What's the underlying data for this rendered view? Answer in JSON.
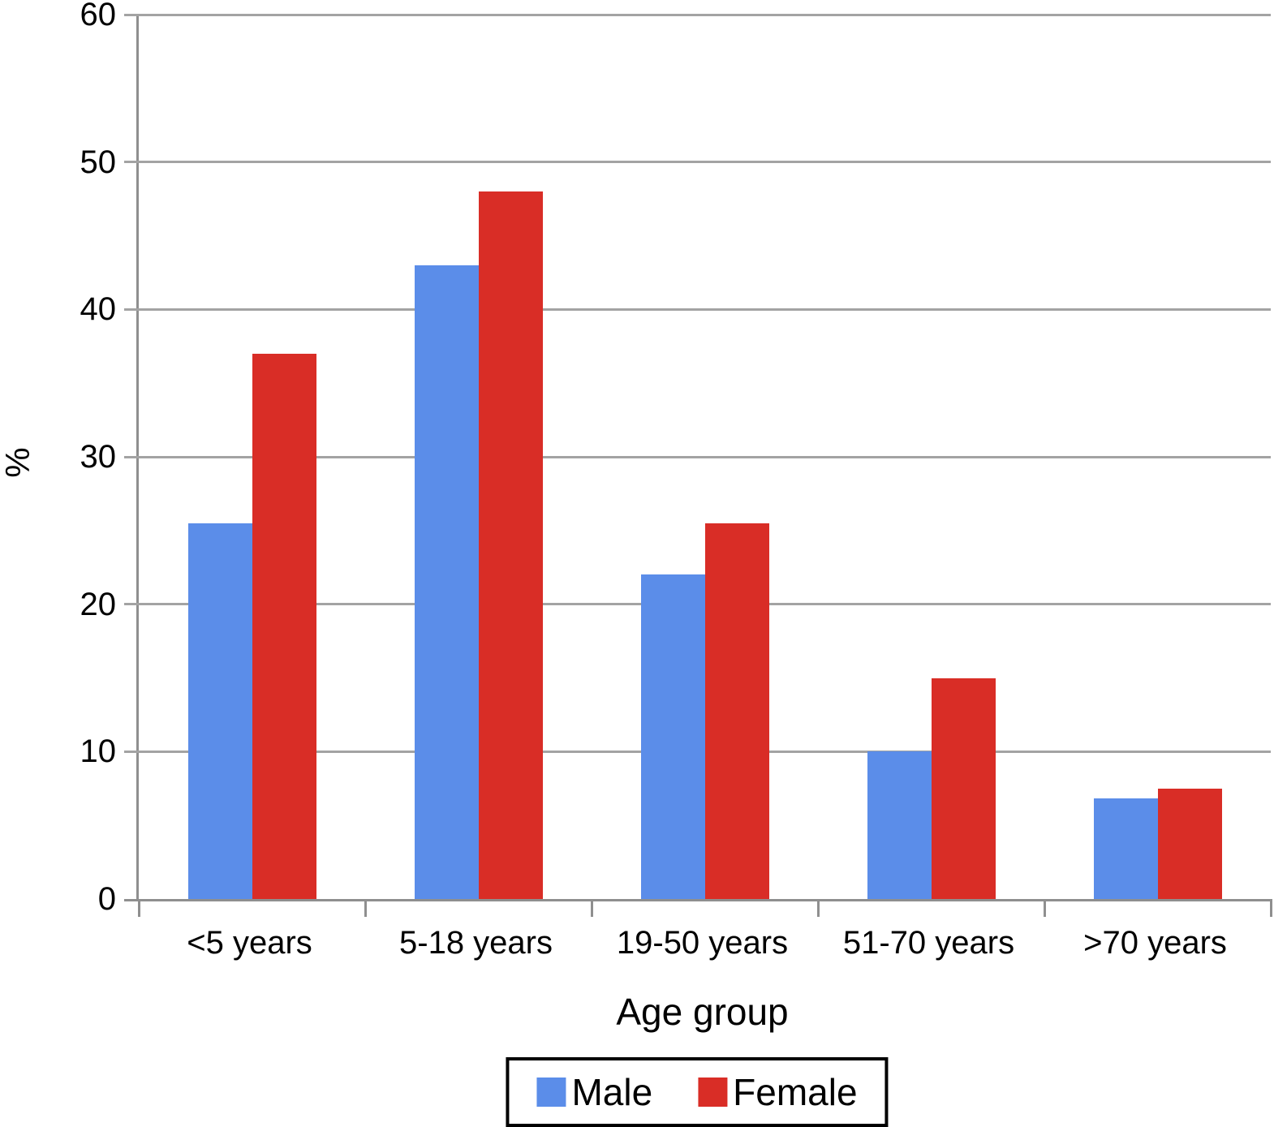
{
  "chart_data": {
    "type": "bar",
    "title": "",
    "categories": [
      "<5 years",
      "5-18 years",
      "19-50 years",
      "51-70 years",
      ">70 years"
    ],
    "series": [
      {
        "name": "Male",
        "color": "#5b8de9",
        "values": [
          25.5,
          43,
          22,
          10,
          6.8
        ]
      },
      {
        "name": "Female",
        "color": "#d92d26",
        "values": [
          37,
          48,
          25.5,
          15,
          7.5
        ]
      }
    ],
    "xlabel": "Age group",
    "ylabel": "%",
    "ylim": [
      0,
      60
    ],
    "ytick_step": 10,
    "y_tick_labels": [
      "0",
      "10",
      "20",
      "30",
      "40",
      "50",
      "60"
    ],
    "grid": true,
    "legend_position": "bottom-center",
    "colors": {
      "male_blue": "#5b8de9",
      "female_red": "#d92d26",
      "gridline_gray": "#a3a3a3",
      "axis_gray": "#8f8f8f",
      "text_black": "#000000"
    }
  }
}
